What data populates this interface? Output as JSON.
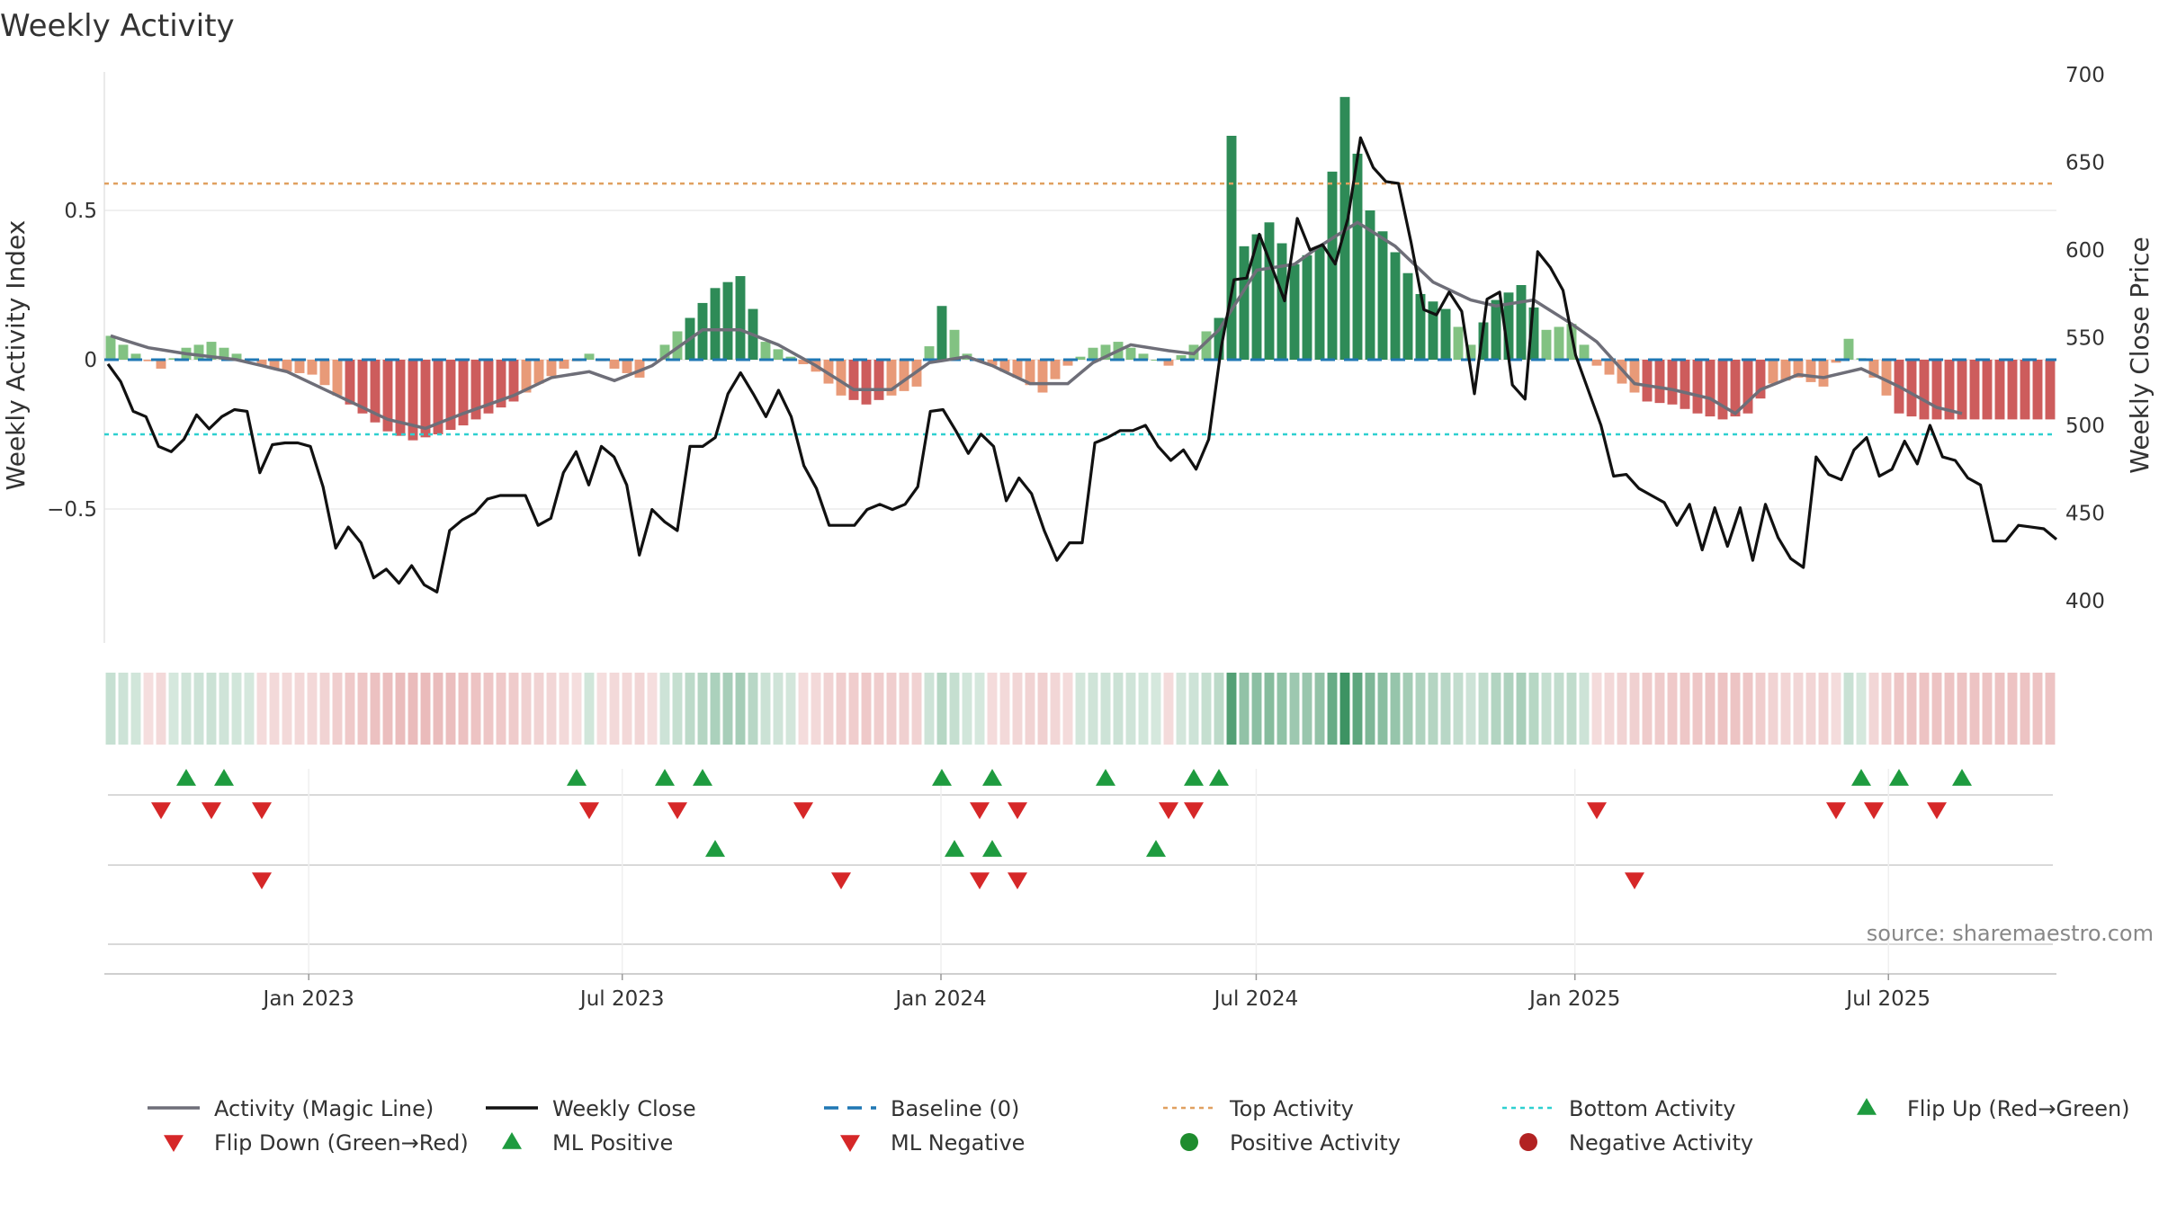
{
  "chart_data": {
    "type": "bar+line",
    "title": "Weekly Activity",
    "ylabel_left": "Weekly Activity Index",
    "ylabel_right": "Weekly Close Price",
    "ylim_left": [
      -0.95,
      0.95
    ],
    "ylim_right": [
      380,
      700
    ],
    "left_ticks": [
      0.5,
      0,
      -0.5
    ],
    "left_tick_labels": [
      "0.5",
      "0",
      "−0.5"
    ],
    "right_ticks": [
      700,
      650,
      600,
      550,
      500,
      450,
      400
    ],
    "top_activity": 0.59,
    "bottom_activity": -0.25,
    "x_start": "2022-09-05",
    "x_end": "2025-10-06",
    "x_tick_dates": [
      "2023-01-01",
      "2023-07-01",
      "2024-01-01",
      "2024-07-01",
      "2025-01-01",
      "2025-07-01"
    ],
    "x_tick_labels": [
      "Jan 2023",
      "Jul 2023",
      "Jan 2024",
      "Jul 2024",
      "Jan 2025",
      "Jul 2025"
    ],
    "activity_anchors": [
      [
        0,
        0.08
      ],
      [
        2,
        0.02
      ],
      [
        4,
        -0.03
      ],
      [
        6,
        0.04
      ],
      [
        8,
        0.06
      ],
      [
        10,
        0.02
      ],
      [
        12,
        -0.02
      ],
      [
        14,
        -0.04
      ],
      [
        16,
        -0.05
      ],
      [
        18,
        -0.12
      ],
      [
        20,
        -0.18
      ],
      [
        22,
        -0.24
      ],
      [
        24,
        -0.27
      ],
      [
        26,
        -0.25
      ],
      [
        28,
        -0.22
      ],
      [
        30,
        -0.18
      ],
      [
        32,
        -0.14
      ],
      [
        34,
        -0.08
      ],
      [
        36,
        -0.03
      ],
      [
        38,
        0.02
      ],
      [
        40,
        -0.03
      ],
      [
        42,
        -0.06
      ],
      [
        44,
        0.05
      ],
      [
        46,
        0.14
      ],
      [
        48,
        0.24
      ],
      [
        50,
        0.28
      ],
      [
        52,
        0.06
      ],
      [
        54,
        0.01
      ],
      [
        56,
        -0.04
      ],
      [
        58,
        -0.12
      ],
      [
        60,
        -0.15
      ],
      [
        62,
        -0.12
      ],
      [
        64,
        -0.09
      ],
      [
        66,
        0.18
      ],
      [
        68,
        0.02
      ],
      [
        70,
        -0.02
      ],
      [
        72,
        -0.06
      ],
      [
        74,
        -0.11
      ],
      [
        76,
        -0.02
      ],
      [
        78,
        0.04
      ],
      [
        80,
        0.06
      ],
      [
        82,
        0.02
      ],
      [
        84,
        -0.02
      ],
      [
        86,
        0.05
      ],
      [
        88,
        0.14
      ],
      [
        89,
        0.75
      ],
      [
        90,
        0.38
      ],
      [
        92,
        0.46
      ],
      [
        94,
        0.32
      ],
      [
        96,
        0.38
      ],
      [
        98,
        0.88
      ],
      [
        100,
        0.5
      ],
      [
        102,
        0.36
      ],
      [
        104,
        0.22
      ],
      [
        106,
        0.17
      ],
      [
        108,
        0.05
      ],
      [
        110,
        0.2
      ],
      [
        112,
        0.25
      ],
      [
        114,
        0.1
      ],
      [
        116,
        0.12
      ],
      [
        118,
        -0.02
      ],
      [
        120,
        -0.08
      ],
      [
        122,
        -0.14
      ],
      [
        124,
        -0.15
      ],
      [
        126,
        -0.18
      ],
      [
        128,
        -0.2
      ],
      [
        130,
        -0.18
      ],
      [
        132,
        -0.08
      ],
      [
        134,
        -0.06
      ],
      [
        136,
        -0.09
      ],
      [
        138,
        0.07
      ],
      [
        140,
        -0.06
      ],
      [
        142,
        -0.18
      ],
      [
        144,
        -0.2
      ],
      [
        147,
        -0.2
      ]
    ],
    "magic_anchors": [
      [
        0,
        0.08
      ],
      [
        3,
        0.04
      ],
      [
        6,
        0.02
      ],
      [
        10,
        0.0
      ],
      [
        14,
        -0.04
      ],
      [
        18,
        -0.12
      ],
      [
        22,
        -0.2
      ],
      [
        25,
        -0.23
      ],
      [
        28,
        -0.18
      ],
      [
        32,
        -0.12
      ],
      [
        35,
        -0.06
      ],
      [
        38,
        -0.04
      ],
      [
        40,
        -0.07
      ],
      [
        43,
        -0.02
      ],
      [
        47,
        0.1
      ],
      [
        50,
        0.1
      ],
      [
        53,
        0.05
      ],
      [
        56,
        -0.02
      ],
      [
        59,
        -0.1
      ],
      [
        62,
        -0.1
      ],
      [
        65,
        -0.01
      ],
      [
        68,
        0.01
      ],
      [
        70,
        -0.02
      ],
      [
        73,
        -0.08
      ],
      [
        76,
        -0.08
      ],
      [
        78,
        -0.01
      ],
      [
        81,
        0.05
      ],
      [
        84,
        0.03
      ],
      [
        86,
        0.02
      ],
      [
        88,
        0.1
      ],
      [
        91,
        0.3
      ],
      [
        94,
        0.32
      ],
      [
        96,
        0.38
      ],
      [
        99,
        0.46
      ],
      [
        102,
        0.38
      ],
      [
        105,
        0.26
      ],
      [
        108,
        0.2
      ],
      [
        110,
        0.18
      ],
      [
        113,
        0.2
      ],
      [
        116,
        0.12
      ],
      [
        118,
        0.06
      ],
      [
        121,
        -0.08
      ],
      [
        124,
        -0.1
      ],
      [
        127,
        -0.13
      ],
      [
        129,
        -0.18
      ],
      [
        131,
        -0.1
      ],
      [
        134,
        -0.05
      ],
      [
        136,
        -0.06
      ],
      [
        139,
        -0.03
      ],
      [
        142,
        -0.09
      ],
      [
        145,
        -0.16
      ],
      [
        147,
        -0.18
      ]
    ],
    "close_anchors": [
      [
        0,
        535
      ],
      [
        1,
        525
      ],
      [
        2,
        508
      ],
      [
        3,
        505
      ],
      [
        4,
        488
      ],
      [
        5,
        485
      ],
      [
        6,
        492
      ],
      [
        7,
        506
      ],
      [
        8,
        498
      ],
      [
        9,
        505
      ],
      [
        10,
        509
      ],
      [
        11,
        508
      ],
      [
        12,
        473
      ],
      [
        13,
        489
      ],
      [
        14,
        490
      ],
      [
        15,
        490
      ],
      [
        16,
        488
      ],
      [
        17,
        465
      ],
      [
        18,
        430
      ],
      [
        19,
        442
      ],
      [
        20,
        433
      ],
      [
        21,
        413
      ],
      [
        22,
        418
      ],
      [
        23,
        410
      ],
      [
        24,
        420
      ],
      [
        25,
        409
      ],
      [
        26,
        405
      ],
      [
        27,
        440
      ],
      [
        28,
        446
      ],
      [
        29,
        450
      ],
      [
        30,
        458
      ],
      [
        31,
        460
      ],
      [
        32,
        460
      ],
      [
        33,
        460
      ],
      [
        34,
        443
      ],
      [
        35,
        447
      ],
      [
        36,
        473
      ],
      [
        37,
        485
      ],
      [
        38,
        466
      ],
      [
        39,
        488
      ],
      [
        40,
        482
      ],
      [
        41,
        466
      ],
      [
        42,
        426
      ],
      [
        43,
        452
      ],
      [
        44,
        445
      ],
      [
        45,
        440
      ],
      [
        46,
        488
      ],
      [
        47,
        488
      ],
      [
        48,
        493
      ],
      [
        49,
        518
      ],
      [
        50,
        530
      ],
      [
        51,
        518
      ],
      [
        52,
        505
      ],
      [
        53,
        520
      ],
      [
        54,
        505
      ],
      [
        55,
        477
      ],
      [
        56,
        464
      ],
      [
        57,
        443
      ],
      [
        58,
        443
      ],
      [
        59,
        443
      ],
      [
        60,
        452
      ],
      [
        61,
        455
      ],
      [
        62,
        452
      ],
      [
        63,
        455
      ],
      [
        64,
        465
      ],
      [
        65,
        508
      ],
      [
        66,
        509
      ],
      [
        67,
        497
      ],
      [
        68,
        484
      ],
      [
        69,
        495
      ],
      [
        70,
        488
      ],
      [
        71,
        457
      ],
      [
        72,
        470
      ],
      [
        73,
        461
      ],
      [
        74,
        440
      ],
      [
        75,
        423
      ],
      [
        76,
        433
      ],
      [
        77,
        433
      ],
      [
        78,
        490
      ],
      [
        79,
        493
      ],
      [
        80,
        497
      ],
      [
        81,
        497
      ],
      [
        82,
        500
      ],
      [
        83,
        488
      ],
      [
        84,
        480
      ],
      [
        85,
        486
      ],
      [
        86,
        475
      ],
      [
        87,
        492
      ],
      [
        88,
        545
      ],
      [
        89,
        583
      ],
      [
        90,
        584
      ],
      [
        91,
        609
      ],
      [
        92,
        590
      ],
      [
        93,
        571
      ],
      [
        94,
        618
      ],
      [
        95,
        600
      ],
      [
        96,
        603
      ],
      [
        97,
        592
      ],
      [
        98,
        618
      ],
      [
        99,
        664
      ],
      [
        100,
        647
      ],
      [
        101,
        639
      ],
      [
        102,
        638
      ],
      [
        103,
        604
      ],
      [
        104,
        566
      ],
      [
        105,
        563
      ],
      [
        106,
        576
      ],
      [
        107,
        565
      ],
      [
        108,
        518
      ],
      [
        109,
        572
      ],
      [
        110,
        576
      ],
      [
        111,
        523
      ],
      [
        112,
        515
      ],
      [
        113,
        599
      ],
      [
        114,
        590
      ],
      [
        115,
        577
      ],
      [
        116,
        540
      ],
      [
        117,
        520
      ],
      [
        118,
        500
      ],
      [
        119,
        471
      ],
      [
        120,
        472
      ],
      [
        121,
        464
      ],
      [
        122,
        460
      ],
      [
        123,
        456
      ],
      [
        124,
        443
      ],
      [
        125,
        455
      ],
      [
        126,
        429
      ],
      [
        127,
        453
      ],
      [
        128,
        431
      ],
      [
        129,
        453
      ],
      [
        130,
        423
      ],
      [
        131,
        455
      ],
      [
        132,
        436
      ],
      [
        133,
        424
      ],
      [
        134,
        419
      ],
      [
        135,
        482
      ],
      [
        136,
        472
      ],
      [
        137,
        469
      ],
      [
        138,
        486
      ],
      [
        139,
        493
      ],
      [
        140,
        471
      ],
      [
        141,
        475
      ],
      [
        142,
        491
      ],
      [
        143,
        478
      ],
      [
        144,
        500
      ],
      [
        145,
        482
      ],
      [
        146,
        480
      ],
      [
        147,
        470
      ],
      [
        148,
        466
      ],
      [
        149,
        434
      ],
      [
        150,
        434
      ],
      [
        151,
        443
      ],
      [
        152,
        442
      ],
      [
        153,
        441
      ],
      [
        154,
        435
      ]
    ],
    "flip_up_row1": [
      6,
      9,
      37,
      44,
      47,
      66,
      70,
      79,
      86,
      88,
      139,
      142,
      147
    ],
    "flip_down_row1": [
      4,
      8,
      12,
      38,
      45,
      55,
      69,
      72,
      84,
      86,
      118,
      137,
      140,
      145
    ],
    "ml_up_row2": [
      48,
      67,
      70,
      83
    ],
    "ml_down_row2": [
      12,
      58,
      69,
      72,
      121
    ],
    "colors": {
      "pos_strong": "#2e8b57",
      "pos_light": "#82c282",
      "neg_strong": "#cd5c5c",
      "neg_light": "#e89a78",
      "magic_line": "#6e6e78",
      "close_line": "#111111",
      "baseline": "#1f77b4",
      "top_activity": "#e0a060",
      "bottom_activity": "#2ed0d0",
      "flip_up": "#1e9b3f",
      "flip_down": "#d62728",
      "neg_marker": "#b22222"
    },
    "legend": [
      {
        "key": "magic",
        "label": "Activity (Magic Line)",
        "symbol": "line-solid",
        "color": "#6e6e78"
      },
      {
        "key": "close",
        "label": "Weekly Close",
        "symbol": "line-solid",
        "color": "#111111"
      },
      {
        "key": "baseline",
        "label": "Baseline (0)",
        "symbol": "line-dashed",
        "color": "#1f77b4"
      },
      {
        "key": "top",
        "label": "Top Activity",
        "symbol": "line-dotted",
        "color": "#e0a060"
      },
      {
        "key": "bottom",
        "label": "Bottom Activity",
        "symbol": "line-dotted",
        "color": "#2ed0d0"
      },
      {
        "key": "flip-up",
        "label": "Flip Up (Red→Green)",
        "symbol": "triangle-up",
        "color": "#1e9b3f"
      },
      {
        "key": "flip-down",
        "label": "Flip Down (Green→Red)",
        "symbol": "triangle-down",
        "color": "#d62728"
      },
      {
        "key": "ml-positive",
        "label": "ML Positive",
        "symbol": "triangle-up",
        "color": "#1e9b3f"
      },
      {
        "key": "ml-negative",
        "label": "ML Negative",
        "symbol": "triangle-down",
        "color": "#d62728"
      },
      {
        "key": "positive-activity",
        "label": "Positive Activity",
        "symbol": "circle",
        "color": "#1e8c2e"
      },
      {
        "key": "negative-activity",
        "label": "Negative Activity",
        "symbol": "circle",
        "color": "#b22222"
      }
    ],
    "source": "source: sharemaestro.com"
  }
}
